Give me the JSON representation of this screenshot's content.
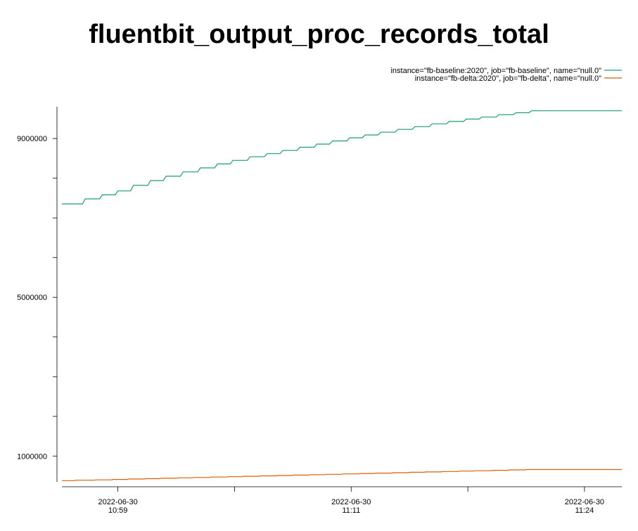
{
  "chart_data": {
    "type": "line",
    "title": "fluentbit_output_proc_records_total",
    "xlabel": "",
    "ylabel": "",
    "ylim": [
      350000,
      9800000
    ],
    "xlim_minutes": [
      -3.6,
      32.4
    ],
    "legend_position": "top-right",
    "grid": false,
    "y_ticks": [
      {
        "value": 1000000,
        "label": "1000000"
      },
      {
        "value": 2000000,
        "label": ""
      },
      {
        "value": 3000000,
        "label": ""
      },
      {
        "value": 4000000,
        "label": ""
      },
      {
        "value": 5000000,
        "label": "5000000"
      },
      {
        "value": 6000000,
        "label": ""
      },
      {
        "value": 7000000,
        "label": ""
      },
      {
        "value": 8000000,
        "label": ""
      },
      {
        "value": 9000000,
        "label": "9000000"
      }
    ],
    "x_ticks": [
      {
        "minute": 0,
        "date": "2022-06-30",
        "time": "10:59"
      },
      {
        "minute": 7.5,
        "date": "",
        "time": ""
      },
      {
        "minute": 15,
        "date": "2022-06-30",
        "time": "11:11"
      },
      {
        "minute": 22.5,
        "date": "",
        "time": ""
      },
      {
        "minute": 30,
        "date": "2022-06-30",
        "time": "11:24"
      }
    ],
    "series": [
      {
        "name": "instance=\"fb-baseline:2020\", job=\"fb-baseline\", name=\"null.0\"",
        "color": "#1b9e77",
        "start_minute": -3.6,
        "step_minutes": 0.48,
        "steps": [
          [
            0,
            7350000
          ],
          [
            1.5,
            7480000
          ],
          [
            2.6,
            7580000
          ],
          [
            3.6,
            7680000
          ],
          [
            4.6,
            7820000
          ],
          [
            5.7,
            7940000
          ],
          [
            6.7,
            8050000
          ],
          [
            7.8,
            8160000
          ],
          [
            8.9,
            8260000
          ],
          [
            10.0,
            8360000
          ],
          [
            11.0,
            8450000
          ],
          [
            12.1,
            8540000
          ],
          [
            13.2,
            8620000
          ],
          [
            14.2,
            8700000
          ],
          [
            15.3,
            8780000
          ],
          [
            16.4,
            8860000
          ],
          [
            17.4,
            8940000
          ],
          [
            18.5,
            9020000
          ],
          [
            19.5,
            9090000
          ],
          [
            20.5,
            9160000
          ],
          [
            21.6,
            9230000
          ],
          [
            22.7,
            9300000
          ],
          [
            23.8,
            9370000
          ],
          [
            24.9,
            9430000
          ],
          [
            26.0,
            9490000
          ],
          [
            27.0,
            9540000
          ],
          [
            28.1,
            9600000
          ],
          [
            29.2,
            9650000
          ],
          [
            30.2,
            9700000
          ],
          [
            31.1,
            9700000
          ]
        ]
      },
      {
        "name": "instance=\"fb-delta:2020\", job=\"fb-delta\", name=\"null.0\"",
        "color": "#d95f02",
        "start_minute": -3.6,
        "step_minutes": 0.48,
        "steps": [
          [
            0,
            380000
          ],
          [
            0.9,
            390000
          ],
          [
            2.2,
            400000
          ],
          [
            3.3,
            410000
          ],
          [
            4.3,
            420000
          ],
          [
            5.4,
            430000
          ],
          [
            6.4,
            440000
          ],
          [
            7.5,
            450000
          ],
          [
            8.5,
            460000
          ],
          [
            9.6,
            470000
          ],
          [
            10.7,
            480000
          ],
          [
            11.7,
            490000
          ],
          [
            12.8,
            500000
          ],
          [
            13.9,
            510000
          ],
          [
            14.9,
            520000
          ],
          [
            16.0,
            530000
          ],
          [
            17.0,
            540000
          ],
          [
            18.1,
            550000
          ],
          [
            19.2,
            560000
          ],
          [
            20.2,
            570000
          ],
          [
            21.3,
            580000
          ],
          [
            22.4,
            590000
          ],
          [
            23.4,
            600000
          ],
          [
            24.5,
            610000
          ],
          [
            25.6,
            620000
          ],
          [
            26.6,
            630000
          ],
          [
            27.7,
            640000
          ],
          [
            28.8,
            650000
          ],
          [
            29.9,
            660000
          ],
          [
            31.1,
            660000
          ]
        ]
      }
    ]
  }
}
